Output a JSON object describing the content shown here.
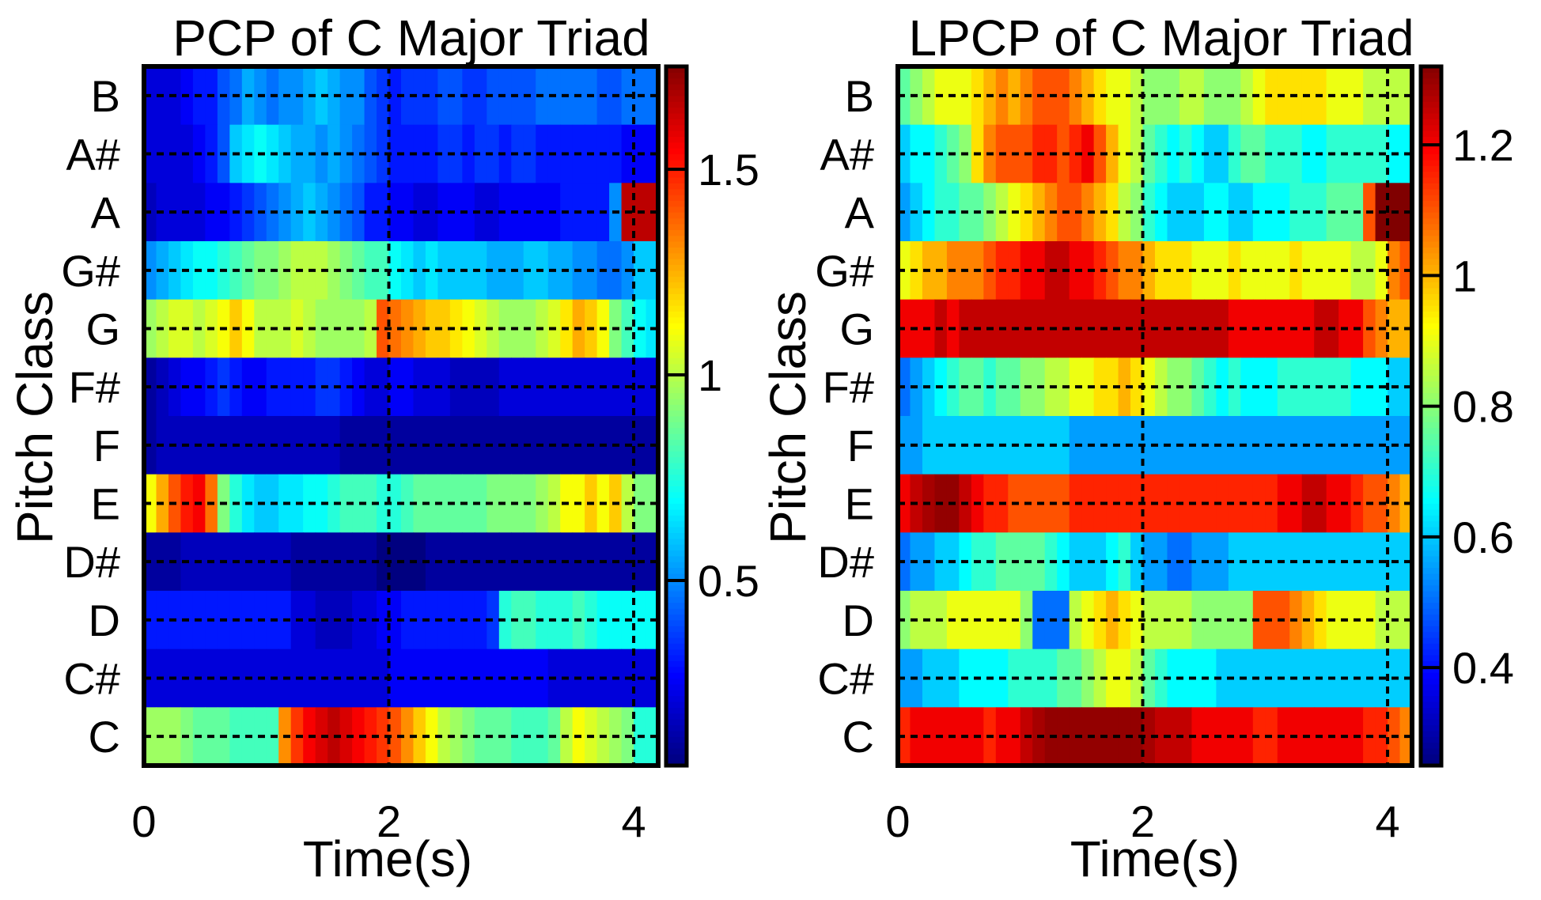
{
  "chart_data": [
    {
      "type": "heatmap",
      "title": "PCP of  C Major Triad",
      "xlabel": "Time(s)",
      "ylabel": "Pitch Class",
      "xlim": [
        0,
        4.2
      ],
      "xticks": [
        "0",
        "2",
        "4"
      ],
      "xtick_values": [
        0,
        2,
        4
      ],
      "yticks": [
        "B",
        "A#",
        "A",
        "G#",
        "G",
        "F#",
        "F",
        "E",
        "D#",
        "D",
        "C#",
        "C"
      ],
      "clim": [
        0.05,
        1.75
      ],
      "colorbar_ticks": [
        "0.5",
        "1",
        "1.5"
      ],
      "colorbar_tick_values": [
        0.5,
        1.0,
        1.5
      ],
      "colormap": "jet",
      "vertical_dashed_lines": [
        2,
        4
      ],
      "horizontal_dashed_lines": true,
      "frames": 42,
      "rows": {
        "B": [
          0.2,
          0.2,
          0.2,
          0.25,
          0.3,
          0.3,
          0.4,
          0.45,
          0.55,
          0.5,
          0.45,
          0.5,
          0.5,
          0.55,
          0.6,
          0.55,
          0.5,
          0.5,
          0.4,
          0.35,
          0.3,
          0.35,
          0.35,
          0.35,
          0.4,
          0.4,
          0.35,
          0.35,
          0.4,
          0.4,
          0.4,
          0.4,
          0.45,
          0.45,
          0.45,
          0.45,
          0.45,
          0.4,
          0.4,
          0.45,
          0.45,
          0.45
        ],
        "A#": [
          0.2,
          0.2,
          0.2,
          0.2,
          0.25,
          0.3,
          0.4,
          0.6,
          0.65,
          0.7,
          0.65,
          0.6,
          0.55,
          0.55,
          0.5,
          0.55,
          0.5,
          0.45,
          0.4,
          0.35,
          0.3,
          0.3,
          0.3,
          0.3,
          0.35,
          0.35,
          0.3,
          0.35,
          0.35,
          0.3,
          0.35,
          0.35,
          0.3,
          0.3,
          0.3,
          0.3,
          0.3,
          0.3,
          0.3,
          0.25,
          0.25,
          0.25
        ],
        "A": [
          0.15,
          0.2,
          0.2,
          0.2,
          0.2,
          0.25,
          0.25,
          0.3,
          0.35,
          0.4,
          0.45,
          0.5,
          0.55,
          0.6,
          0.55,
          0.5,
          0.45,
          0.4,
          0.3,
          0.3,
          0.25,
          0.25,
          0.2,
          0.2,
          0.25,
          0.25,
          0.25,
          0.2,
          0.2,
          0.25,
          0.25,
          0.25,
          0.25,
          0.25,
          0.3,
          0.3,
          0.3,
          0.3,
          0.5,
          1.65,
          1.65,
          1.65
        ],
        "G#": [
          0.5,
          0.55,
          0.6,
          0.65,
          0.7,
          0.7,
          0.75,
          0.8,
          0.85,
          0.9,
          0.9,
          0.95,
          1.0,
          1.0,
          1.0,
          0.95,
          0.9,
          0.85,
          0.8,
          0.8,
          0.7,
          0.65,
          0.6,
          0.65,
          0.6,
          0.6,
          0.6,
          0.6,
          0.55,
          0.55,
          0.55,
          0.6,
          0.6,
          0.55,
          0.55,
          0.5,
          0.5,
          0.45,
          0.45,
          0.5,
          0.6,
          0.6
        ],
        "G": [
          0.95,
          1.0,
          1.05,
          1.05,
          1.0,
          1.05,
          1.1,
          1.2,
          1.1,
          1.0,
          1.0,
          1.0,
          1.05,
          1.0,
          0.95,
          0.95,
          0.95,
          0.95,
          1.0,
          1.4,
          1.35,
          1.3,
          1.25,
          1.2,
          1.2,
          1.15,
          1.1,
          1.05,
          1.0,
          0.95,
          0.95,
          0.95,
          1.0,
          1.05,
          1.15,
          1.25,
          1.2,
          1.1,
          0.9,
          0.8,
          0.7,
          0.65
        ],
        "F#": [
          0.1,
          0.15,
          0.2,
          0.25,
          0.25,
          0.3,
          0.35,
          0.3,
          0.25,
          0.25,
          0.3,
          0.3,
          0.3,
          0.3,
          0.35,
          0.35,
          0.3,
          0.25,
          0.2,
          0.2,
          0.25,
          0.25,
          0.2,
          0.2,
          0.2,
          0.15,
          0.15,
          0.15,
          0.15,
          0.2,
          0.2,
          0.2,
          0.2,
          0.2,
          0.2,
          0.2,
          0.2,
          0.2,
          0.2,
          0.2,
          0.2,
          0.2
        ],
        "F": [
          0.1,
          0.15,
          0.15,
          0.15,
          0.15,
          0.15,
          0.15,
          0.15,
          0.15,
          0.15,
          0.15,
          0.15,
          0.15,
          0.15,
          0.15,
          0.15,
          0.1,
          0.1,
          0.1,
          0.1,
          0.1,
          0.1,
          0.1,
          0.1,
          0.1,
          0.1,
          0.1,
          0.1,
          0.1,
          0.1,
          0.1,
          0.1,
          0.1,
          0.1,
          0.1,
          0.1,
          0.1,
          0.1,
          0.1,
          0.1,
          0.1,
          0.1
        ],
        "E": [
          1.1,
          1.25,
          1.4,
          1.5,
          1.55,
          1.35,
          0.9,
          0.75,
          0.65,
          0.6,
          0.6,
          0.65,
          0.65,
          0.7,
          0.7,
          0.75,
          0.8,
          0.8,
          0.8,
          0.75,
          0.75,
          0.8,
          0.85,
          0.85,
          0.85,
          0.85,
          0.85,
          0.85,
          0.9,
          0.9,
          0.9,
          0.9,
          0.95,
          1.0,
          1.1,
          1.1,
          1.2,
          1.1,
          1.2,
          1.0,
          0.9,
          0.9
        ],
        "D#": [
          0.1,
          0.1,
          0.1,
          0.15,
          0.15,
          0.15,
          0.15,
          0.15,
          0.15,
          0.15,
          0.15,
          0.15,
          0.1,
          0.1,
          0.1,
          0.1,
          0.1,
          0.1,
          0.1,
          0.05,
          0.05,
          0.05,
          0.05,
          0.1,
          0.1,
          0.1,
          0.1,
          0.1,
          0.1,
          0.1,
          0.1,
          0.1,
          0.1,
          0.1,
          0.1,
          0.1,
          0.1,
          0.1,
          0.1,
          0.1,
          0.1,
          0.1
        ],
        "D": [
          0.3,
          0.3,
          0.3,
          0.3,
          0.3,
          0.3,
          0.3,
          0.3,
          0.3,
          0.3,
          0.3,
          0.3,
          0.2,
          0.2,
          0.15,
          0.15,
          0.15,
          0.2,
          0.2,
          0.25,
          0.25,
          0.3,
          0.3,
          0.3,
          0.3,
          0.3,
          0.3,
          0.3,
          0.35,
          0.75,
          0.8,
          0.8,
          0.75,
          0.75,
          0.75,
          0.8,
          0.75,
          0.7,
          0.7,
          0.7,
          0.7,
          0.7
        ],
        "C#": [
          0.2,
          0.2,
          0.2,
          0.2,
          0.2,
          0.2,
          0.2,
          0.2,
          0.2,
          0.2,
          0.2,
          0.2,
          0.2,
          0.2,
          0.2,
          0.2,
          0.2,
          0.2,
          0.2,
          0.2,
          0.25,
          0.25,
          0.25,
          0.25,
          0.25,
          0.25,
          0.25,
          0.25,
          0.25,
          0.25,
          0.25,
          0.25,
          0.25,
          0.2,
          0.2,
          0.2,
          0.2,
          0.2,
          0.2,
          0.2,
          0.2,
          0.2
        ],
        "C": [
          0.95,
          0.95,
          0.95,
          0.9,
          0.85,
          0.85,
          0.85,
          0.8,
          0.8,
          0.8,
          0.8,
          1.3,
          1.45,
          1.55,
          1.6,
          1.65,
          1.6,
          1.55,
          1.5,
          1.45,
          1.4,
          1.3,
          1.2,
          1.1,
          1.0,
          0.95,
          0.9,
          0.85,
          0.85,
          0.85,
          0.8,
          0.8,
          0.8,
          0.85,
          1.0,
          1.1,
          1.05,
          1.0,
          0.95,
          0.9,
          0.75,
          0.75
        ]
      }
    },
    {
      "type": "heatmap",
      "title": "LPCP of  C Major Triad",
      "xlabel": "Time(s)",
      "ylabel": "Pitch Class",
      "xlim": [
        0,
        4.2
      ],
      "xticks": [
        "0",
        "2",
        "4"
      ],
      "xtick_values": [
        0,
        2,
        4
      ],
      "yticks": [
        "B",
        "A#",
        "A",
        "G#",
        "G",
        "F#",
        "F",
        "E",
        "D#",
        "D",
        "C#",
        "C"
      ],
      "clim": [
        0.25,
        1.32
      ],
      "colorbar_ticks": [
        "0.4",
        "0.6",
        "0.8",
        "1",
        "1.2"
      ],
      "colorbar_tick_values": [
        0.4,
        0.6,
        0.8,
        1.0,
        1.2
      ],
      "colormap": "jet",
      "vertical_dashed_lines": [
        2,
        4
      ],
      "horizontal_dashed_lines": true,
      "frames": 42,
      "rows": {
        "B": [
          0.75,
          0.8,
          0.85,
          0.9,
          0.9,
          0.9,
          0.95,
          1.0,
          1.05,
          1.0,
          1.05,
          1.1,
          1.1,
          1.1,
          1.05,
          1.0,
          0.95,
          0.9,
          0.9,
          0.85,
          0.8,
          0.8,
          0.8,
          0.85,
          0.85,
          0.8,
          0.8,
          0.8,
          0.85,
          0.9,
          0.95,
          0.95,
          0.95,
          0.95,
          0.95,
          0.9,
          0.9,
          0.9,
          0.85,
          0.85,
          0.85,
          0.85
        ],
        "A#": [
          0.6,
          0.65,
          0.65,
          0.7,
          0.75,
          0.8,
          0.95,
          1.05,
          1.1,
          1.1,
          1.1,
          1.15,
          1.15,
          1.1,
          1.15,
          1.2,
          1.1,
          1.0,
          0.9,
          0.85,
          0.75,
          0.7,
          0.65,
          0.7,
          0.65,
          0.6,
          0.6,
          0.7,
          0.75,
          0.75,
          0.7,
          0.7,
          0.7,
          0.65,
          0.65,
          0.7,
          0.7,
          0.7,
          0.7,
          0.7,
          0.65,
          0.65
        ],
        "A": [
          0.55,
          0.6,
          0.65,
          0.7,
          0.7,
          0.75,
          0.75,
          0.8,
          0.85,
          0.9,
          0.95,
          1.0,
          1.05,
          1.1,
          1.1,
          1.05,
          1.0,
          0.95,
          0.85,
          0.8,
          0.7,
          0.65,
          0.6,
          0.6,
          0.6,
          0.65,
          0.65,
          0.6,
          0.6,
          0.65,
          0.65,
          0.65,
          0.7,
          0.7,
          0.7,
          0.75,
          0.75,
          0.75,
          1.1,
          1.32,
          1.32,
          1.32
        ],
        "G#": [
          0.9,
          0.95,
          1.0,
          1.0,
          1.05,
          1.05,
          1.05,
          1.1,
          1.15,
          1.15,
          1.2,
          1.2,
          1.25,
          1.25,
          1.2,
          1.2,
          1.15,
          1.1,
          1.05,
          1.05,
          1.0,
          0.95,
          0.95,
          0.95,
          0.9,
          0.9,
          0.9,
          0.95,
          0.9,
          0.9,
          0.9,
          0.9,
          0.95,
          0.9,
          0.9,
          0.9,
          0.9,
          0.85,
          0.85,
          0.9,
          1.05,
          1.1
        ],
        "G": [
          1.2,
          1.2,
          1.2,
          1.25,
          1.2,
          1.25,
          1.25,
          1.25,
          1.25,
          1.25,
          1.25,
          1.25,
          1.25,
          1.25,
          1.25,
          1.25,
          1.25,
          1.25,
          1.25,
          1.25,
          1.25,
          1.25,
          1.25,
          1.25,
          1.25,
          1.25,
          1.25,
          1.2,
          1.2,
          1.2,
          1.2,
          1.2,
          1.2,
          1.2,
          1.25,
          1.25,
          1.2,
          1.2,
          1.1,
          1.05,
          1.0,
          1.0
        ],
        "F#": [
          0.5,
          0.55,
          0.6,
          0.65,
          0.7,
          0.75,
          0.75,
          0.7,
          0.75,
          0.75,
          0.8,
          0.8,
          0.85,
          0.85,
          0.9,
          0.9,
          0.95,
          0.95,
          1.0,
          0.95,
          0.9,
          0.85,
          0.8,
          0.8,
          0.75,
          0.7,
          0.65,
          0.7,
          0.65,
          0.65,
          0.65,
          0.7,
          0.7,
          0.7,
          0.7,
          0.7,
          0.7,
          0.65,
          0.65,
          0.65,
          0.6,
          0.6
        ],
        "F": [
          0.55,
          0.55,
          0.6,
          0.6,
          0.6,
          0.6,
          0.6,
          0.6,
          0.6,
          0.6,
          0.6,
          0.6,
          0.6,
          0.6,
          0.55,
          0.55,
          0.55,
          0.55,
          0.55,
          0.55,
          0.55,
          0.55,
          0.55,
          0.55,
          0.55,
          0.55,
          0.55,
          0.55,
          0.55,
          0.55,
          0.55,
          0.55,
          0.55,
          0.55,
          0.55,
          0.55,
          0.55,
          0.55,
          0.55,
          0.55,
          0.55,
          0.55
        ],
        "E": [
          1.2,
          1.25,
          1.28,
          1.3,
          1.3,
          1.25,
          1.2,
          1.15,
          1.15,
          1.1,
          1.1,
          1.1,
          1.1,
          1.1,
          1.15,
          1.15,
          1.15,
          1.15,
          1.15,
          1.15,
          1.15,
          1.15,
          1.15,
          1.15,
          1.15,
          1.15,
          1.15,
          1.15,
          1.15,
          1.15,
          1.15,
          1.2,
          1.2,
          1.25,
          1.25,
          1.2,
          1.2,
          1.15,
          1.1,
          1.1,
          1.05,
          1.0
        ],
        "D#": [
          0.5,
          0.55,
          0.55,
          0.6,
          0.6,
          0.65,
          0.7,
          0.7,
          0.75,
          0.75,
          0.75,
          0.75,
          0.7,
          0.65,
          0.6,
          0.6,
          0.6,
          0.65,
          0.7,
          0.6,
          0.55,
          0.55,
          0.5,
          0.5,
          0.55,
          0.55,
          0.55,
          0.6,
          0.6,
          0.6,
          0.6,
          0.6,
          0.6,
          0.6,
          0.6,
          0.6,
          0.6,
          0.6,
          0.6,
          0.6,
          0.6,
          0.6
        ],
        "D": [
          0.8,
          0.85,
          0.85,
          0.85,
          0.9,
          0.9,
          0.9,
          0.9,
          0.9,
          0.9,
          0.8,
          0.5,
          0.5,
          0.5,
          0.85,
          0.9,
          0.95,
          1.0,
          0.95,
          0.9,
          0.85,
          0.85,
          0.85,
          0.85,
          0.8,
          0.8,
          0.8,
          0.8,
          0.8,
          1.1,
          1.1,
          1.1,
          1.05,
          1.0,
          0.95,
          0.9,
          0.9,
          0.9,
          0.9,
          0.85,
          0.85,
          0.85
        ],
        "C#": [
          0.55,
          0.55,
          0.6,
          0.6,
          0.6,
          0.65,
          0.65,
          0.65,
          0.65,
          0.7,
          0.7,
          0.7,
          0.7,
          0.75,
          0.75,
          0.8,
          0.85,
          0.9,
          0.9,
          0.85,
          0.75,
          0.7,
          0.65,
          0.65,
          0.65,
          0.65,
          0.6,
          0.6,
          0.6,
          0.6,
          0.6,
          0.6,
          0.6,
          0.6,
          0.6,
          0.6,
          0.6,
          0.6,
          0.6,
          0.6,
          0.6,
          0.6
        ],
        "C": [
          1.15,
          1.2,
          1.2,
          1.2,
          1.2,
          1.2,
          1.2,
          1.15,
          1.2,
          1.2,
          1.25,
          1.28,
          1.3,
          1.3,
          1.3,
          1.3,
          1.3,
          1.3,
          1.3,
          1.3,
          1.28,
          1.25,
          1.25,
          1.25,
          1.2,
          1.2,
          1.2,
          1.2,
          1.2,
          1.15,
          1.15,
          1.2,
          1.2,
          1.2,
          1.2,
          1.2,
          1.2,
          1.2,
          1.15,
          1.15,
          1.1,
          1.05
        ]
      }
    }
  ]
}
